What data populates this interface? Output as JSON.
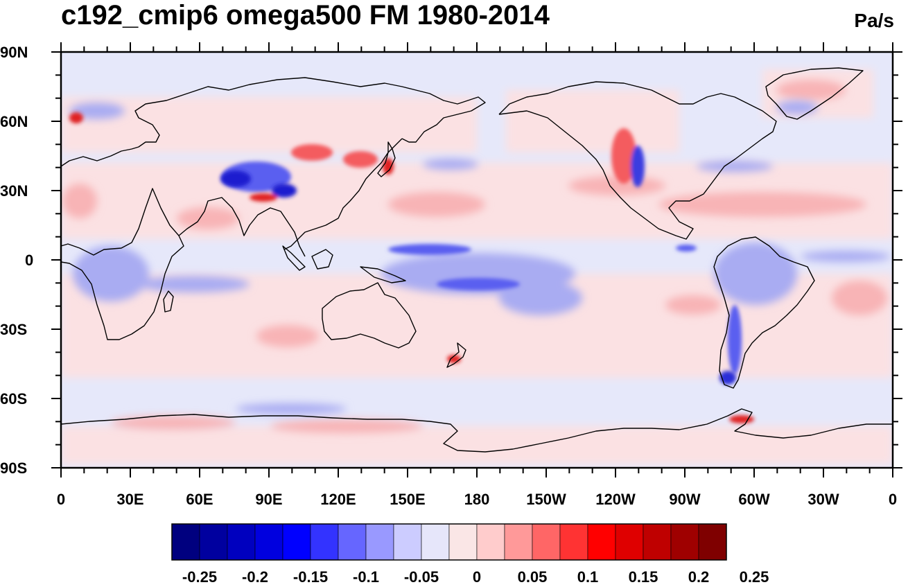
{
  "title": "c192_cmip6 omega500 FM 1980-2014",
  "units": "Pa/s",
  "map": {
    "projection": "cylindrical-equidistant",
    "longitude_center": 180,
    "latitude_range": [
      -90,
      90
    ],
    "lat_labels": [
      "90N",
      "60N",
      "30N",
      "0",
      "30S",
      "60S",
      "90S"
    ],
    "lon_labels": [
      "0",
      "30E",
      "60E",
      "90E",
      "120E",
      "150E",
      "180",
      "150W",
      "120W",
      "90W",
      "60W",
      "30W",
      "0"
    ],
    "background_color": "#e6e8fa",
    "coastline_color": "#000000"
  },
  "colorbar": {
    "colors": [
      "#00007f",
      "#00009f",
      "#0000bf",
      "#0000df",
      "#0000ff",
      "#3333ff",
      "#6666ff",
      "#9999ff",
      "#ccccff",
      "#e6e6fa",
      "#fae6e6",
      "#ffcccc",
      "#ff9999",
      "#ff6666",
      "#ff3333",
      "#ff0000",
      "#df0000",
      "#bf0000",
      "#9f0000",
      "#7f0000"
    ],
    "labels": [
      "-0.25",
      "-0.2",
      "-0.15",
      "-0.1",
      "-0.05",
      "0",
      "0.05",
      "0.1",
      "0.15",
      "0.2",
      "0.25"
    ]
  }
}
